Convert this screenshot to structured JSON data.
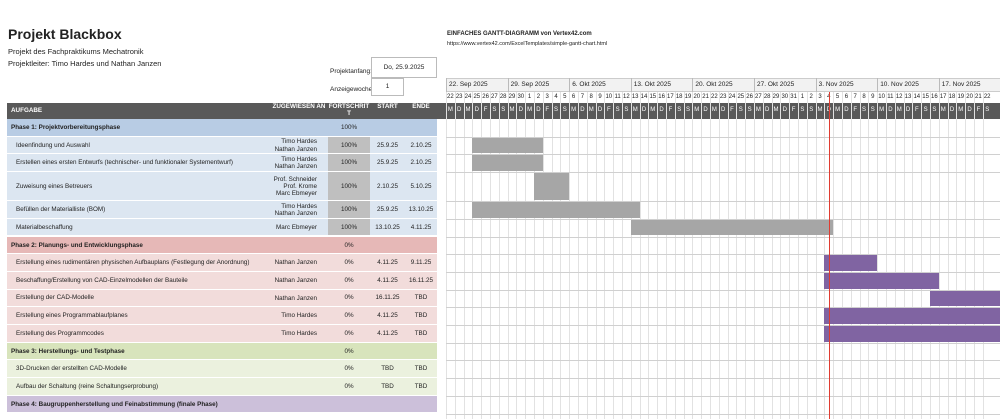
{
  "header": {
    "title": "Projekt Blackbox",
    "subtitle": "Projekt des Fachpraktikums Mechatronik",
    "lead": "Projektleiter: Timo Hardes und Nathan Janzen"
  },
  "settings": {
    "start_label": "Projektanfang:",
    "start_value": "Do, 25.9.2025",
    "week_label": "Anzeigewoche",
    "week_value": "1"
  },
  "template": {
    "title": "EINFACHES GANTT-DIAGRAMM von Vertex42.com",
    "url": "https://www.vertex42.com/ExcelTemplates/simple-gantt-chart.html"
  },
  "calendar": {
    "weeks": [
      "22. Sep 2025",
      "29. Sep 2025",
      "6. Okt 2025",
      "13. Okt 2025",
      "20. Okt 2025",
      "27. Okt 2025",
      "3. Nov 2025",
      "10. Nov 2025",
      "17. Nov 2025"
    ],
    "days": [
      "22",
      "23",
      "24",
      "25",
      "26",
      "27",
      "28",
      "29",
      "30",
      "1",
      "2",
      "3",
      "4",
      "5",
      "6",
      "7",
      "8",
      "9",
      "10",
      "11",
      "12",
      "13",
      "14",
      "15",
      "16",
      "17",
      "18",
      "19",
      "20",
      "21",
      "22",
      "23",
      "24",
      "25",
      "26",
      "27",
      "28",
      "29",
      "30",
      "31",
      "1",
      "2",
      "3",
      "4",
      "5",
      "6",
      "7",
      "8",
      "9",
      "10",
      "11",
      "12",
      "13",
      "14",
      "15",
      "16",
      "17",
      "18",
      "19",
      "20",
      "21",
      "22"
    ],
    "weekdays": [
      "M",
      "D",
      "M",
      "D",
      "F",
      "S",
      "S",
      "M",
      "D",
      "M",
      "D",
      "F",
      "S",
      "S",
      "M",
      "D",
      "M",
      "D",
      "F",
      "S",
      "S",
      "M",
      "D",
      "M",
      "D",
      "F",
      "S",
      "S",
      "M",
      "D",
      "M",
      "D",
      "F",
      "S",
      "S",
      "M",
      "D",
      "M",
      "D",
      "F",
      "S",
      "S",
      "M",
      "D",
      "M",
      "D",
      "F",
      "S",
      "S",
      "M",
      "D",
      "M",
      "D",
      "F",
      "S",
      "S",
      "M",
      "D",
      "M",
      "D",
      "F",
      "S"
    ]
  },
  "table": {
    "columns": [
      "AUFGABE",
      "ZUGEWIESEN AN",
      "FORTSCHRITT",
      "START",
      "ENDE"
    ],
    "phases": [
      {
        "title": "Phase 1: Projektvorbereitungsphase",
        "progress": "100%",
        "tasks": [
          {
            "name": "Ideenfindung und Auswahl",
            "assignee": "Timo Hardes\nNathan Janzen",
            "progress": "100%",
            "start": "25.9.25",
            "end": "2.10.25"
          },
          {
            "name": "Erstellen eines ersten Entwurfs (technischer- und funktionaler Systementwurf)",
            "assignee": "Timo Hardes\nNathan Janzen",
            "progress": "100%",
            "start": "25.9.25",
            "end": "2.10.25"
          },
          {
            "name": "Zuweisung eines Betreuers",
            "assignee": "Prof. Schneider\nProf. Krome\nMarc Ebmeyer",
            "progress": "100%",
            "start": "2.10.25",
            "end": "5.10.25"
          },
          {
            "name": "Befüllen der Materialliste (BOM)",
            "assignee": "Timo Hardes\nNathan Janzen",
            "progress": "100%",
            "start": "25.9.25",
            "end": "13.10.25"
          },
          {
            "name": "Materialbeschaffung",
            "assignee": "Marc Ebmeyer",
            "progress": "100%",
            "start": "13.10.25",
            "end": "4.11.25"
          }
        ]
      },
      {
        "title": "Phase 2: Planungs- und Entwicklungsphase",
        "progress": "0%",
        "tasks": [
          {
            "name": "Erstellung eines rudimentären physischen Aufbauplans (Festlegung der  Anordnung)",
            "assignee": "Nathan Janzen",
            "progress": "0%",
            "start": "4.11.25",
            "end": "9.11.25"
          },
          {
            "name": "Beschaffung/Erstellung von CAD-Einzelmodellen der Bauteile",
            "assignee": "Nathan Janzen",
            "progress": "0%",
            "start": "4.11.25",
            "end": "16.11.25"
          },
          {
            "name": "Erstellung der CAD-Modelle",
            "assignee": "Nathan Janzen",
            "progress": "0%",
            "start": "16.11.25",
            "end": "TBD"
          },
          {
            "name": "Erstellung eines Programmablaufplanes",
            "assignee": "Timo Hardes",
            "progress": "0%",
            "start": "4.11.25",
            "end": "TBD"
          },
          {
            "name": "Erstellung des Programmcodes",
            "assignee": "Timo Hardes",
            "progress": "0%",
            "start": "4.11.25",
            "end": "TBD"
          }
        ]
      },
      {
        "title": "Phase 3: Herstellungs- und Testphase",
        "progress": "0%",
        "tasks": [
          {
            "name": "3D-Drucken der erstellten CAD-Modelle",
            "progress": "0%",
            "start": "TBD",
            "end": "TBD"
          },
          {
            "name": "Aufbau der Schaltung (reine Schaltungserprobung)",
            "progress": "0%",
            "start": "TBD",
            "end": "TBD"
          }
        ]
      },
      {
        "title": "Phase 4: Baugruppenherstellung und Feinabstimmung (finale Phase)"
      }
    ]
  }
}
